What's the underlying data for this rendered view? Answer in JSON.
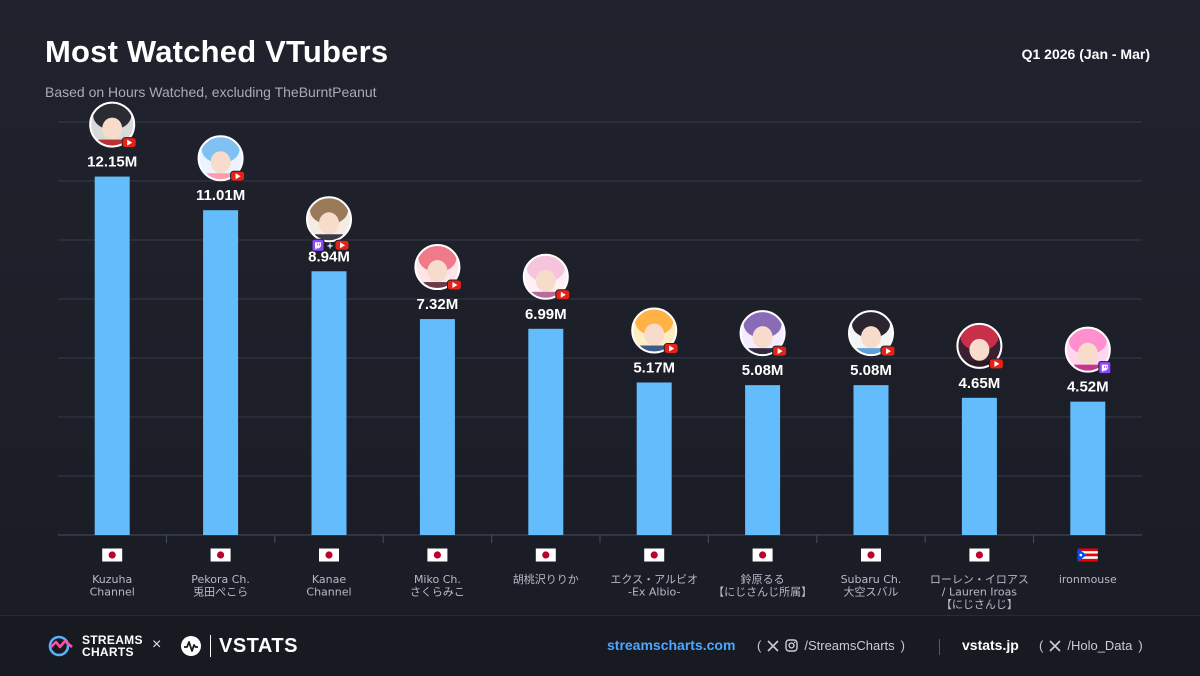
{
  "header": {
    "title": "Most Watched VTubers",
    "subtitle": "Based on Hours Watched, excluding TheBurntPeanut",
    "period": "Q1 2026 (Jan - Mar)"
  },
  "colors": {
    "bar": "#63bdfc",
    "background": "#1e202a",
    "grid": "#363a49",
    "youtube": "#e62117",
    "twitch": "#9146ff",
    "link": "#4da6ff"
  },
  "chart_data": {
    "type": "bar",
    "ylim": [
      0,
      14
    ],
    "grid": true,
    "categories": [
      "Kuzuha\nChannel",
      "Pekora Ch.\n兎田ぺこら",
      "Kanae\nChannel",
      "Miko Ch.\nさくらみこ",
      "胡桃沢りりか",
      "エクス・アルビオ\n-Ex Albio-",
      "鈴原るる\n【にじさんじ所属】",
      "Subaru Ch.\n大空スバル",
      "ローレン・イロアス\n/ Lauren Iroas\n【にじさんじ】",
      "ironmouse"
    ],
    "values": [
      12.15,
      11.01,
      8.94,
      7.32,
      6.99,
      5.17,
      5.08,
      5.08,
      4.65,
      4.52
    ],
    "value_labels": [
      "12.15M",
      "11.01M",
      "8.94M",
      "7.32M",
      "6.99M",
      "5.17M",
      "5.08M",
      "5.08M",
      "4.65M",
      "4.52M"
    ],
    "flags": [
      "jp",
      "jp",
      "jp",
      "jp",
      "jp",
      "jp",
      "jp",
      "jp",
      "jp",
      "pr"
    ],
    "platforms": [
      [
        "youtube"
      ],
      [
        "youtube"
      ],
      [
        "twitch",
        "youtube"
      ],
      [
        "youtube"
      ],
      [
        "youtube"
      ],
      [
        "youtube"
      ],
      [
        "youtube"
      ],
      [
        "youtube"
      ],
      [
        "youtube"
      ],
      [
        "twitch"
      ]
    ],
    "avatar_colors": [
      [
        "#d9d9d9",
        "#2b2b33",
        "#b83232"
      ],
      [
        "#eaf3ff",
        "#7fc1f2",
        "#ff9ab0"
      ],
      [
        "#f4ece4",
        "#9a7a58",
        "#3b3b45"
      ],
      [
        "#ffe4e8",
        "#f07a8a",
        "#6a3a46"
      ],
      [
        "#fff0f6",
        "#f6c4dc",
        "#b86b9a"
      ],
      [
        "#ffeec4",
        "#ffb347",
        "#3d5a8a"
      ],
      [
        "#f6ebff",
        "#8a6bb8",
        "#332a44"
      ],
      [
        "#f4f4f6",
        "#2a2530",
        "#5ea0d8"
      ],
      [
        "#3a2030",
        "#c8304a",
        "#2a1a22"
      ],
      [
        "#ffd6ee",
        "#ff8fcf",
        "#c2388c"
      ]
    ]
  },
  "footer": {
    "streamscharts_line1": "STREAMS",
    "streamscharts_line2": "CHARTS",
    "times": "×",
    "vstats": "VSTATS",
    "site1": "streamscharts.com",
    "social1": "/StreamsCharts",
    "site2": "vstats.jp",
    "social2": "/Holo_Data",
    "paren_open": "(",
    "paren_close": ")"
  }
}
